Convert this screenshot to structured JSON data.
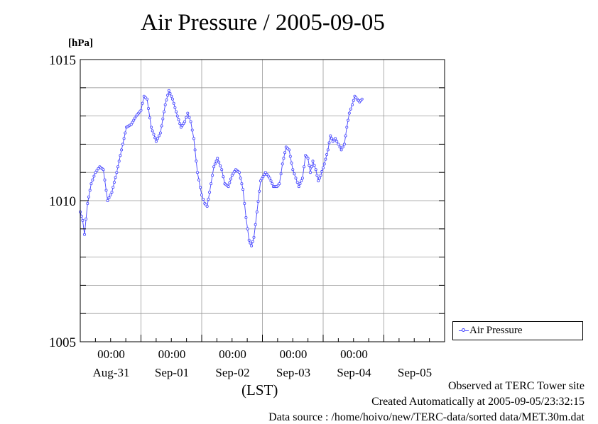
{
  "page": {
    "title": "Air Pressure / 2005-09-05",
    "unit": "[hPa]",
    "xlabel": "(LST)",
    "footer": [
      "Observed at TERC Tower site",
      "Created Automatically at 2005-09-05/23:32:15",
      "Data source : /home/hoivo/new/TERC-data/sorted  data/MET.30m.dat"
    ],
    "line_color": "#4444ff"
  },
  "chart_data": {
    "type": "line",
    "title": "Air Pressure / 2005-09-05",
    "xlabel": "(LST)",
    "ylabel": "[hPa]",
    "ylim": [
      1005,
      1015
    ],
    "xlim": [
      0,
      6
    ],
    "grid": true,
    "y_ticks": [
      1005,
      1010,
      1015
    ],
    "x_ticks": [
      {
        "pos": 1,
        "time": "00:00",
        "date": "Aug-31"
      },
      {
        "pos": 2,
        "time": "00:00",
        "date": "Sep-01"
      },
      {
        "pos": 3,
        "time": "00:00",
        "date": "Sep-02"
      },
      {
        "pos": 4,
        "time": "00:00",
        "date": "Sep-03"
      },
      {
        "pos": 5,
        "time": "00:00",
        "date": "Sep-04"
      },
      {
        "pos": 6,
        "time": "",
        "date": "Sep-05"
      }
    ],
    "legend": {
      "position": "right",
      "entries": [
        "Air Pressure"
      ]
    },
    "series": [
      {
        "name": "Air Pressure",
        "keypoints": [
          [
            0.0,
            1009.6
          ],
          [
            0.04,
            1009.3
          ],
          [
            0.07,
            1008.8
          ],
          [
            0.12,
            1009.9
          ],
          [
            0.18,
            1010.6
          ],
          [
            0.25,
            1011.0
          ],
          [
            0.32,
            1011.2
          ],
          [
            0.38,
            1011.1
          ],
          [
            0.45,
            1010.0
          ],
          [
            0.52,
            1010.3
          ],
          [
            0.6,
            1011.0
          ],
          [
            0.68,
            1011.8
          ],
          [
            0.76,
            1012.6
          ],
          [
            0.84,
            1012.7
          ],
          [
            0.92,
            1013.0
          ],
          [
            1.0,
            1013.2
          ],
          [
            1.05,
            1013.7
          ],
          [
            1.1,
            1013.6
          ],
          [
            1.17,
            1012.6
          ],
          [
            1.25,
            1012.1
          ],
          [
            1.32,
            1012.4
          ],
          [
            1.4,
            1013.4
          ],
          [
            1.46,
            1013.9
          ],
          [
            1.52,
            1013.6
          ],
          [
            1.6,
            1013.0
          ],
          [
            1.66,
            1012.6
          ],
          [
            1.72,
            1012.8
          ],
          [
            1.77,
            1013.1
          ],
          [
            1.82,
            1012.8
          ],
          [
            1.87,
            1012.2
          ],
          [
            1.93,
            1011.0
          ],
          [
            2.0,
            1010.2
          ],
          [
            2.05,
            1009.9
          ],
          [
            2.09,
            1009.8
          ],
          [
            2.13,
            1010.3
          ],
          [
            2.2,
            1011.2
          ],
          [
            2.26,
            1011.5
          ],
          [
            2.33,
            1011.1
          ],
          [
            2.38,
            1010.6
          ],
          [
            2.44,
            1010.5
          ],
          [
            2.5,
            1010.9
          ],
          [
            2.56,
            1011.1
          ],
          [
            2.62,
            1011.0
          ],
          [
            2.68,
            1010.4
          ],
          [
            2.73,
            1009.4
          ],
          [
            2.78,
            1008.6
          ],
          [
            2.82,
            1008.4
          ],
          [
            2.86,
            1008.7
          ],
          [
            2.91,
            1009.6
          ],
          [
            2.97,
            1010.7
          ],
          [
            3.05,
            1011.0
          ],
          [
            3.12,
            1010.8
          ],
          [
            3.18,
            1010.5
          ],
          [
            3.24,
            1010.5
          ],
          [
            3.28,
            1010.6
          ],
          [
            3.33,
            1011.3
          ],
          [
            3.39,
            1011.9
          ],
          [
            3.44,
            1011.8
          ],
          [
            3.5,
            1011.1
          ],
          [
            3.55,
            1010.8
          ],
          [
            3.6,
            1010.5
          ],
          [
            3.66,
            1010.8
          ],
          [
            3.71,
            1011.6
          ],
          [
            3.75,
            1011.5
          ],
          [
            3.79,
            1011.0
          ],
          [
            3.83,
            1011.4
          ],
          [
            3.88,
            1011.1
          ],
          [
            3.92,
            1010.7
          ],
          [
            3.96,
            1010.9
          ],
          [
            4.02,
            1011.3
          ],
          [
            4.08,
            1011.8
          ],
          [
            4.12,
            1012.3
          ],
          [
            4.16,
            1012.1
          ],
          [
            4.2,
            1012.2
          ],
          [
            4.25,
            1012.0
          ],
          [
            4.3,
            1011.8
          ],
          [
            4.35,
            1012.0
          ],
          [
            4.39,
            1012.6
          ],
          [
            4.43,
            1013.1
          ],
          [
            4.48,
            1013.4
          ],
          [
            4.52,
            1013.7
          ],
          [
            4.56,
            1013.6
          ],
          [
            4.6,
            1013.5
          ],
          [
            4.64,
            1013.6
          ]
        ]
      }
    ]
  }
}
